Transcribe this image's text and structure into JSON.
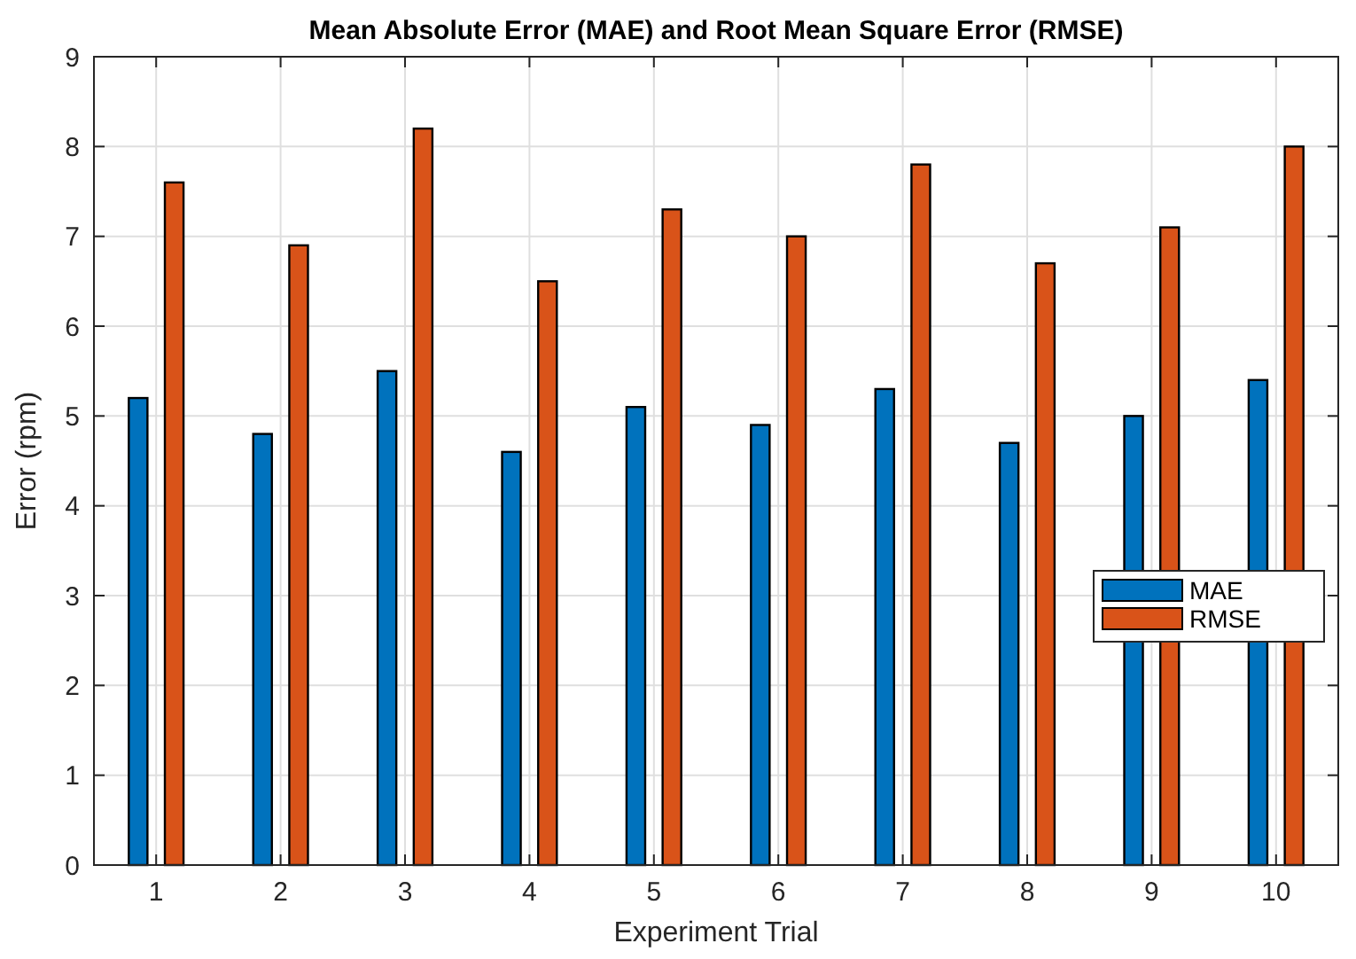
{
  "chart_data": {
    "type": "bar",
    "title": "Mean Absolute Error (MAE) and Root Mean Square Error (RMSE)",
    "xlabel": "Experiment Trial",
    "ylabel": "Error (rpm)",
    "categories": [
      "1",
      "2",
      "3",
      "4",
      "5",
      "6",
      "7",
      "8",
      "9",
      "10"
    ],
    "series": [
      {
        "name": "MAE",
        "color": "#0072bd",
        "values": [
          5.2,
          4.8,
          5.5,
          4.6,
          5.1,
          4.9,
          5.3,
          4.7,
          5.0,
          5.4
        ]
      },
      {
        "name": "RMSE",
        "color": "#d95319",
        "values": [
          7.6,
          6.9,
          8.2,
          6.5,
          7.3,
          7.0,
          7.8,
          6.7,
          7.1,
          8.0
        ]
      }
    ],
    "ylim": [
      0,
      9
    ],
    "yticks": [
      0,
      1,
      2,
      3,
      4,
      5,
      6,
      7,
      8,
      9
    ],
    "grid": true,
    "legend": "right"
  }
}
